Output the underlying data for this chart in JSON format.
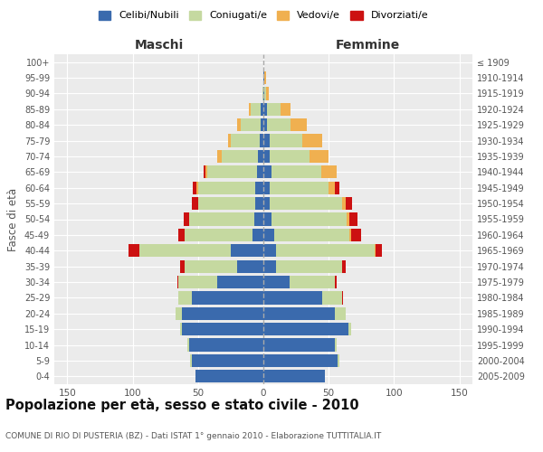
{
  "age_groups": [
    "0-4",
    "5-9",
    "10-14",
    "15-19",
    "20-24",
    "25-29",
    "30-34",
    "35-39",
    "40-44",
    "45-49",
    "50-54",
    "55-59",
    "60-64",
    "65-69",
    "70-74",
    "75-79",
    "80-84",
    "85-89",
    "90-94",
    "95-99",
    "100+"
  ],
  "birth_years": [
    "2005-2009",
    "2000-2004",
    "1995-1999",
    "1990-1994",
    "1985-1989",
    "1980-1984",
    "1975-1979",
    "1970-1974",
    "1965-1969",
    "1960-1964",
    "1955-1959",
    "1950-1954",
    "1945-1949",
    "1940-1944",
    "1935-1939",
    "1930-1934",
    "1925-1929",
    "1920-1924",
    "1915-1919",
    "1910-1914",
    "≤ 1909"
  ],
  "male_celibe": [
    52,
    55,
    57,
    62,
    62,
    55,
    35,
    20,
    25,
    8,
    7,
    6,
    6,
    5,
    4,
    3,
    2,
    2,
    0,
    0,
    0
  ],
  "male_coniugato": [
    0,
    1,
    1,
    2,
    5,
    10,
    30,
    40,
    70,
    52,
    50,
    44,
    44,
    38,
    28,
    22,
    15,
    8,
    1,
    0,
    0
  ],
  "male_vedovo": [
    0,
    0,
    0,
    0,
    0,
    0,
    0,
    0,
    0,
    0,
    0,
    0,
    1,
    1,
    3,
    2,
    3,
    1,
    0,
    0,
    0
  ],
  "male_divorziato": [
    0,
    0,
    0,
    0,
    0,
    0,
    1,
    4,
    8,
    5,
    4,
    5,
    3,
    2,
    0,
    0,
    0,
    0,
    0,
    0,
    0
  ],
  "female_nubile": [
    47,
    57,
    55,
    65,
    55,
    45,
    20,
    10,
    10,
    8,
    6,
    5,
    5,
    6,
    5,
    5,
    3,
    3,
    1,
    1,
    0
  ],
  "female_coniugata": [
    0,
    1,
    1,
    2,
    8,
    15,
    35,
    50,
    75,
    58,
    58,
    55,
    45,
    38,
    30,
    25,
    18,
    10,
    1,
    0,
    0
  ],
  "female_vedova": [
    0,
    0,
    0,
    0,
    0,
    0,
    0,
    0,
    1,
    1,
    2,
    3,
    5,
    12,
    15,
    15,
    12,
    8,
    2,
    1,
    0
  ],
  "female_divorziata": [
    0,
    0,
    0,
    0,
    0,
    1,
    1,
    3,
    5,
    8,
    6,
    5,
    3,
    0,
    0,
    0,
    0,
    0,
    0,
    0,
    0
  ],
  "colors": {
    "celibe": "#3a6aad",
    "coniugato": "#c5d9a0",
    "vedovo": "#f0b050",
    "divorziato": "#cc1111"
  },
  "title": "Popolazione per età, sesso e stato civile - 2010",
  "subtitle": "COMUNE DI RIO DI PUSTERIA (BZ) - Dati ISTAT 1° gennaio 2010 - Elaborazione TUTTITALIA.IT",
  "xlabel_left": "Maschi",
  "xlabel_right": "Femmine",
  "ylabel_left": "Fasce di età",
  "xlim": 160,
  "legend_labels": [
    "Celibi/Nubili",
    "Coniugati/e",
    "Vedovi/e",
    "Divorziati/e"
  ]
}
